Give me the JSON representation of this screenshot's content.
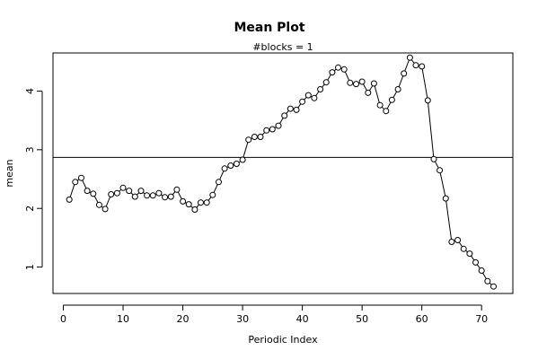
{
  "chart_data": {
    "type": "line",
    "title": "Mean Plot",
    "subtitle": "#blocks =  1",
    "xlabel": "Periodic Index",
    "ylabel": "mean",
    "xlim": [
      0,
      72
    ],
    "ylim": [
      0.55,
      4.65
    ],
    "x_ticks": [
      "0",
      "10",
      "20",
      "30",
      "40",
      "50",
      "60",
      "70"
    ],
    "y_ticks": [
      "1",
      "2",
      "3",
      "4"
    ],
    "reference_line": 2.87,
    "x": [
      1,
      2,
      3,
      4,
      5,
      6,
      7,
      8,
      9,
      10,
      11,
      12,
      13,
      14,
      15,
      16,
      17,
      18,
      19,
      20,
      21,
      22,
      23,
      24,
      25,
      26,
      27,
      28,
      29,
      30,
      31,
      32,
      33,
      34,
      35,
      36,
      37,
      38,
      39,
      40,
      41,
      42,
      43,
      44,
      45,
      46,
      47,
      48,
      49,
      50,
      51,
      52,
      53,
      54,
      55,
      56,
      57,
      58,
      59,
      60,
      61,
      62,
      63,
      64,
      65,
      66,
      67,
      68,
      69,
      70,
      71,
      72
    ],
    "y": [
      2.15,
      2.45,
      2.52,
      2.3,
      2.25,
      2.06,
      1.99,
      2.24,
      2.26,
      2.35,
      2.3,
      2.2,
      2.3,
      2.22,
      2.22,
      2.26,
      2.19,
      2.2,
      2.32,
      2.12,
      2.07,
      1.98,
      2.1,
      2.1,
      2.23,
      2.45,
      2.68,
      2.73,
      2.76,
      2.83,
      3.17,
      3.22,
      3.22,
      3.33,
      3.35,
      3.41,
      3.58,
      3.7,
      3.68,
      3.82,
      3.93,
      3.88,
      4.03,
      4.15,
      4.32,
      4.4,
      4.37,
      4.14,
      4.12,
      4.16,
      3.97,
      4.13,
      3.76,
      3.66,
      3.85,
      4.03,
      4.3,
      4.57,
      4.44,
      4.42,
      3.84,
      2.84,
      2.65,
      2.17,
      1.43,
      1.46,
      1.31,
      1.23,
      1.08,
      0.94,
      0.76,
      0.67
    ],
    "marker": "open-circle",
    "line_color": "#000000"
  }
}
